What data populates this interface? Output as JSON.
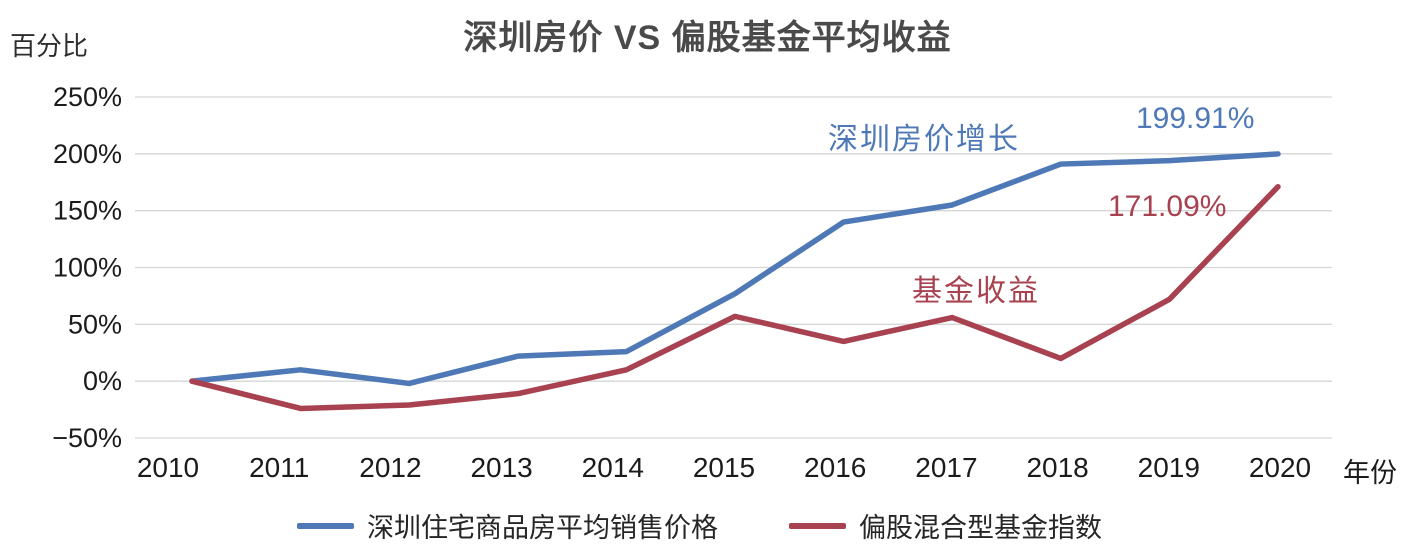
{
  "header": {
    "title": "深圳房价 VS 偏股基金平均收益"
  },
  "axes": {
    "y_unit_label": "百分比",
    "x_unit_label": "年份"
  },
  "annotations": {
    "housing_label": "深圳房价增长",
    "housing_value": "199.91%",
    "fund_value": "171.09%",
    "fund_label": "基金收益"
  },
  "colors": {
    "housing_line": "#4e79b6",
    "fund_line": "#a84250",
    "gridline": "#d6d6d6",
    "tick_text": "#1b1b1b",
    "title_text": "#4a4a4a"
  },
  "chart_data": {
    "type": "line",
    "title": "深圳房价 VS 偏股基金平均收益",
    "xlabel": "年份",
    "ylabel": "百分比",
    "x": [
      2010,
      2011,
      2012,
      2013,
      2014,
      2015,
      2016,
      2017,
      2018,
      2019,
      2020
    ],
    "series": [
      {
        "name": "深圳住宅商品房平均销售价格",
        "color": "#4e79b6",
        "values": [
          0,
          10,
          -2,
          22,
          26,
          77,
          140,
          155,
          191,
          194,
          199.91
        ]
      },
      {
        "name": "偏股混合型基金指数",
        "color": "#a84250",
        "values": [
          0,
          -24,
          -21,
          -11,
          10,
          57,
          35,
          56,
          20,
          72,
          171.09
        ]
      }
    ],
    "ylim": [
      -50,
      250
    ],
    "yticks": [
      -50,
      0,
      50,
      100,
      150,
      200,
      250
    ],
    "ytick_suffix": "%",
    "grid": true,
    "legend_position": "bottom",
    "annotated_final_values": {
      "housing": "199.91%",
      "fund": "171.09%"
    }
  }
}
